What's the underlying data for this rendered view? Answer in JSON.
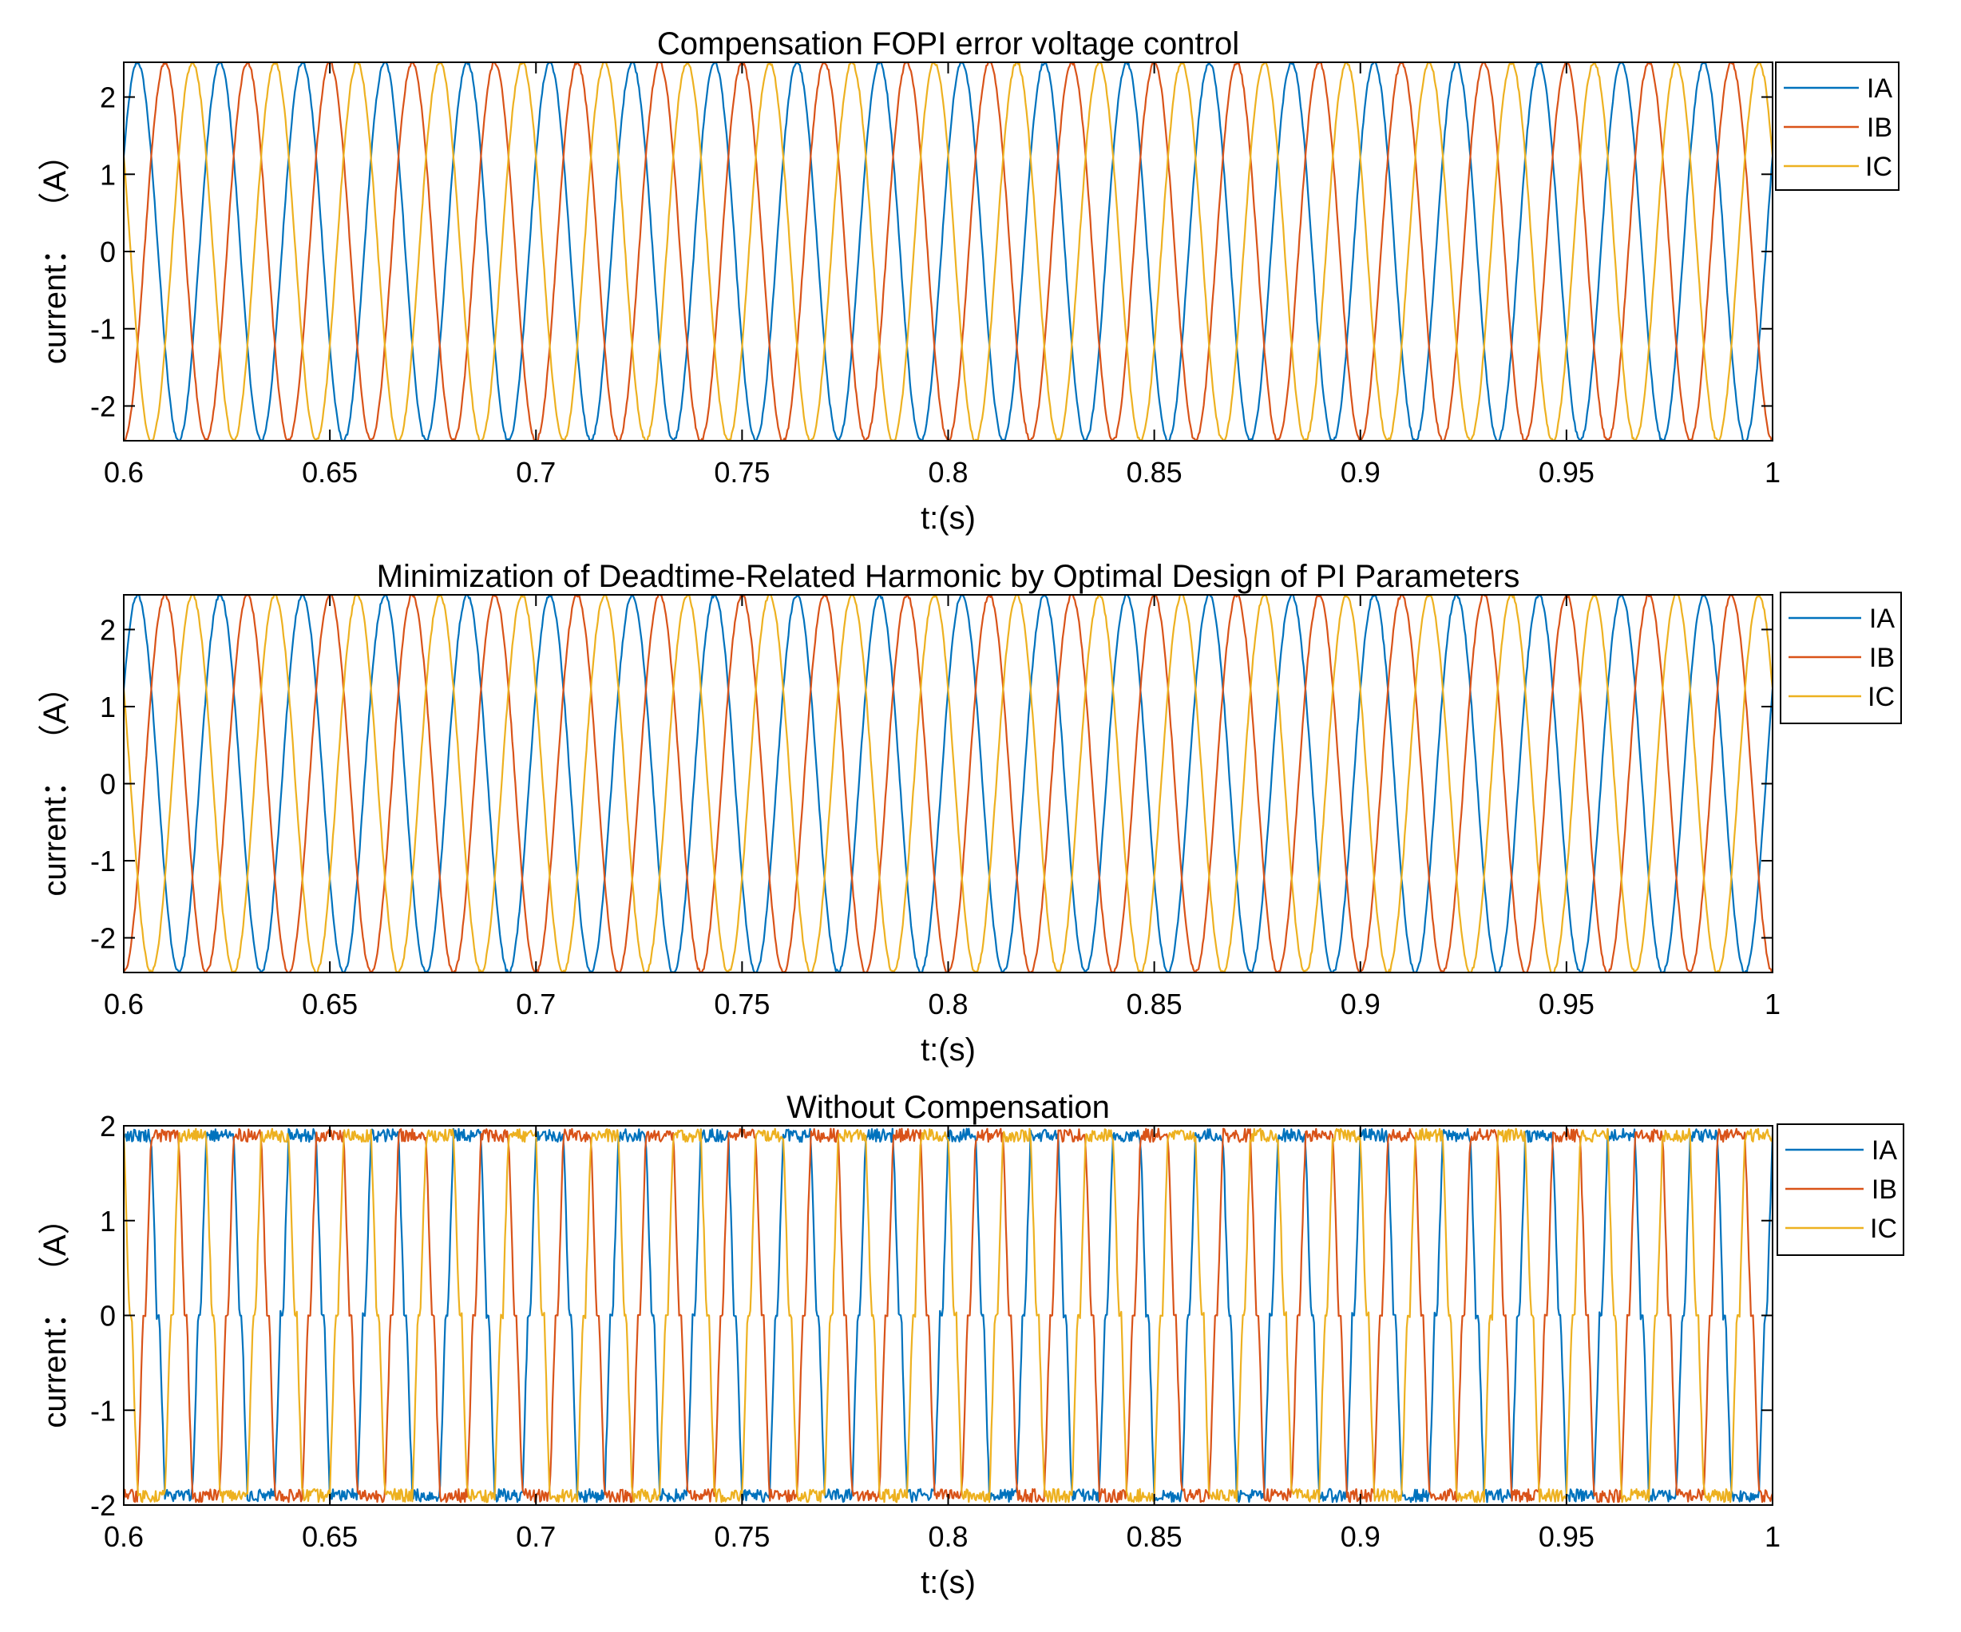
{
  "figure": {
    "background": "#ffffff",
    "axes_color": "#000000"
  },
  "chart_data": [
    {
      "type": "line",
      "title": "Compensation FOPI error voltage control",
      "xlabel": "t:(s)",
      "ylabel": "current： （A）",
      "xlim": [
        0.6,
        1.0
      ],
      "ylim": [
        -2.45,
        2.45
      ],
      "xticks": [
        0.6,
        0.65,
        0.7,
        0.75,
        0.8,
        0.85,
        0.9,
        0.95,
        1.0
      ],
      "xtick_labels": [
        "0.6",
        "0.65",
        "0.7",
        "0.75",
        "0.8",
        "0.85",
        "0.9",
        "0.95",
        "1"
      ],
      "yticks": [
        -2,
        -1,
        0,
        1,
        2
      ],
      "ytick_labels": [
        "-2",
        "-1",
        "0",
        "1",
        "2"
      ],
      "legend_position": "outside top-right",
      "grid": false,
      "frequency_hz": 50,
      "amplitude_A": 2.45,
      "waveform": "sinusoidal, low ripple",
      "series": [
        {
          "name": "IA",
          "color": "#0072BD",
          "phase_deg": 30,
          "value_at_0.6s": 1.2
        },
        {
          "name": "IB",
          "color": "#D95319",
          "phase_deg": -90,
          "value_at_0.6s": -2.4
        },
        {
          "name": "IC",
          "color": "#EDB120",
          "phase_deg": 150,
          "value_at_0.6s": 1.2
        }
      ]
    },
    {
      "type": "line",
      "title": "Minimization of Deadtime-Related Harmonic by Optimal Design of PI Parameters",
      "xlabel": "t:(s)",
      "ylabel": "current： （A）",
      "xlim": [
        0.6,
        1.0
      ],
      "ylim": [
        -2.45,
        2.45
      ],
      "xticks": [
        0.6,
        0.65,
        0.7,
        0.75,
        0.8,
        0.85,
        0.9,
        0.95,
        1.0
      ],
      "xtick_labels": [
        "0.6",
        "0.65",
        "0.7",
        "0.75",
        "0.8",
        "0.85",
        "0.9",
        "0.95",
        "1"
      ],
      "yticks": [
        -2,
        -1,
        0,
        1,
        2
      ],
      "ytick_labels": [
        "-2",
        "-1",
        "0",
        "1",
        "2"
      ],
      "legend_position": "outside top-right",
      "grid": false,
      "frequency_hz": 50,
      "amplitude_A": 2.45,
      "waveform": "sinusoidal, low ripple",
      "series": [
        {
          "name": "IA",
          "color": "#0072BD",
          "phase_deg": 30,
          "value_at_0.6s": 1.2
        },
        {
          "name": "IB",
          "color": "#D95319",
          "phase_deg": -90,
          "value_at_0.6s": -2.4
        },
        {
          "name": "IC",
          "color": "#EDB120",
          "phase_deg": 150,
          "value_at_0.6s": 1.2
        }
      ]
    },
    {
      "type": "line",
      "title": "Without Compensation",
      "xlabel": "t:(s)",
      "ylabel": "current： （A）",
      "xlim": [
        0.6,
        1.0
      ],
      "ylim": [
        -2,
        2
      ],
      "xticks": [
        0.6,
        0.65,
        0.7,
        0.75,
        0.8,
        0.85,
        0.9,
        0.95,
        1.0
      ],
      "xtick_labels": [
        "0.6",
        "0.65",
        "0.7",
        "0.75",
        "0.8",
        "0.85",
        "0.9",
        "0.95",
        "1"
      ],
      "yticks": [
        -2,
        -1,
        0,
        1,
        2
      ],
      "ytick_labels": [
        "-2",
        "-1",
        "0",
        "1",
        "2"
      ],
      "legend_position": "outside top-right",
      "grid": false,
      "frequency_hz": 50,
      "amplitude_A": 1.9,
      "waveform": "distorted trapezoidal with flat zero-crossing plateaus and noisy peaks",
      "series": [
        {
          "name": "IA",
          "color": "#0072BD",
          "phase_deg": 30,
          "value_at_0.6s": 1.8
        },
        {
          "name": "IB",
          "color": "#D95319",
          "phase_deg": -90,
          "value_at_0.6s": -1.9
        },
        {
          "name": "IC",
          "color": "#EDB120",
          "phase_deg": 150,
          "value_at_0.6s": 0
        }
      ]
    }
  ]
}
